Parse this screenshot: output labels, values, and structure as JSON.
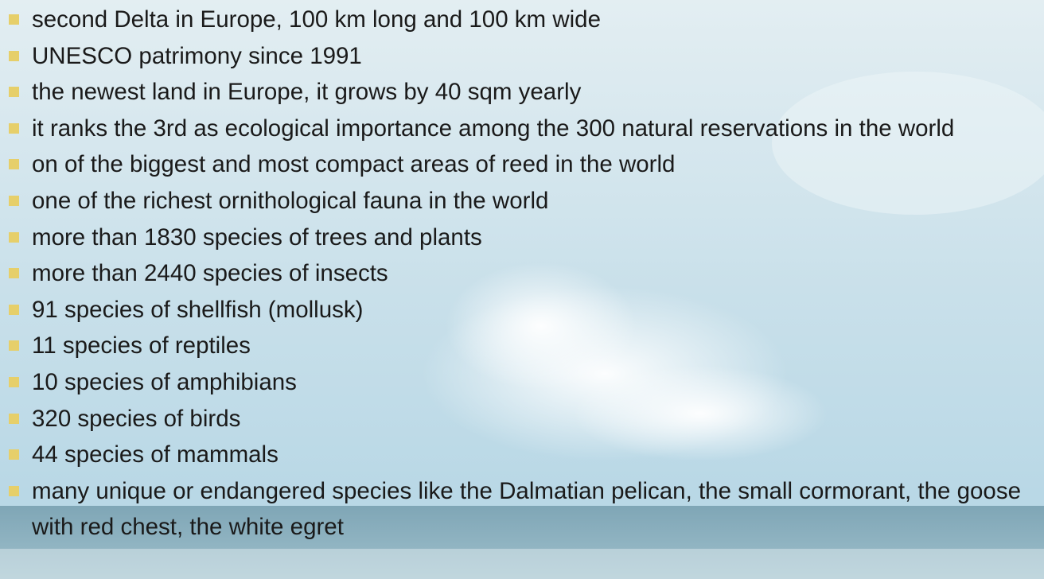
{
  "items": [
    "second Delta in Europe, 100 km long and 100 km wide",
    "UNESCO patrimony since 1991",
    "the newest land in Europe, it grows by 40 sqm yearly",
    "it ranks the 3rd as ecological importance among the 300 natural reservations in the world",
    "on of the biggest and most compact areas of reed in the world",
    "one of the richest ornithological fauna in the world",
    "more than 1830 species of trees and plants",
    "more than 2440 species of insects",
    "91 species of shellfish (mollusk)",
    "11 species of reptiles",
    "10 species of amphibians",
    "320 species of birds",
    "44 species of mammals",
    "many unique or endangered species like the Dalmatian pelican, the small cormorant, the goose with red chest, the white egret"
  ]
}
